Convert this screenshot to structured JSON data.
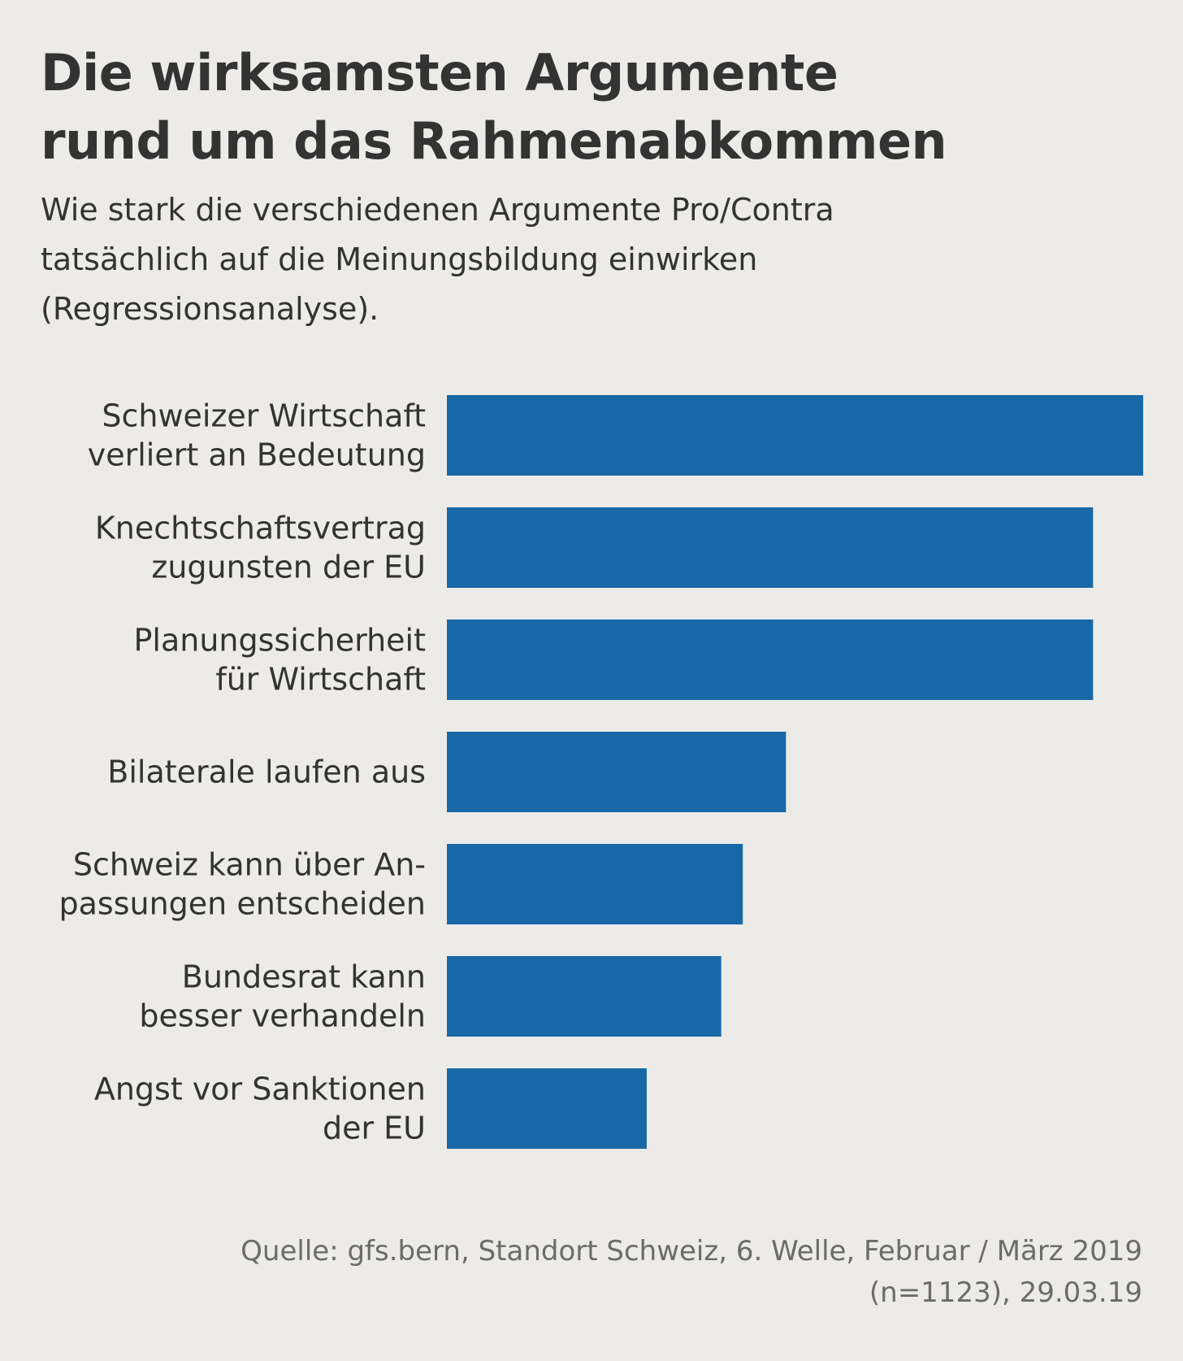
{
  "title_lines": [
    "Die wirksamsten Argumente",
    "rund um das Rahmenabkommen"
  ],
  "subtitle_lines": [
    "Wie stark die verschiedenen Argumente Pro/Contra",
    "tatsächlich auf die Meinungsbildung einwirken",
    "(Regressionsanalyse)."
  ],
  "source_lines": [
    "Quelle: gfs.bern, Standort Schweiz, 6. Welle, Februar / März 2019",
    "(n=1123), 29.03.19"
  ],
  "colors": {
    "bar": "#1868a8",
    "background": "#ecebe7",
    "text": "#333333",
    "source_text": "#6b6b6b"
  },
  "chart_data": {
    "type": "bar",
    "orientation": "horizontal",
    "categories": [
      [
        "Schweizer Wirtschaft",
        "verliert an Bedeutung"
      ],
      [
        "Knechtschaftsvertrag",
        "zugunsten der EU"
      ],
      [
        "Planungssicherheit",
        "für Wirtschaft"
      ],
      [
        "Bilaterale laufen aus"
      ],
      [
        "Schweiz kann über An-",
        "passungen entscheiden"
      ],
      [
        "Bundesrat kann",
        "besser verhandeln"
      ],
      [
        "Angst vor Sanktionen",
        "der EU"
      ]
    ],
    "values": [
      1.0,
      0.928,
      0.928,
      0.487,
      0.425,
      0.394,
      0.287
    ],
    "value_scale": "relative to largest bar (no axis or values printed)",
    "xaxis": "none",
    "grid": false,
    "legend": "none"
  }
}
